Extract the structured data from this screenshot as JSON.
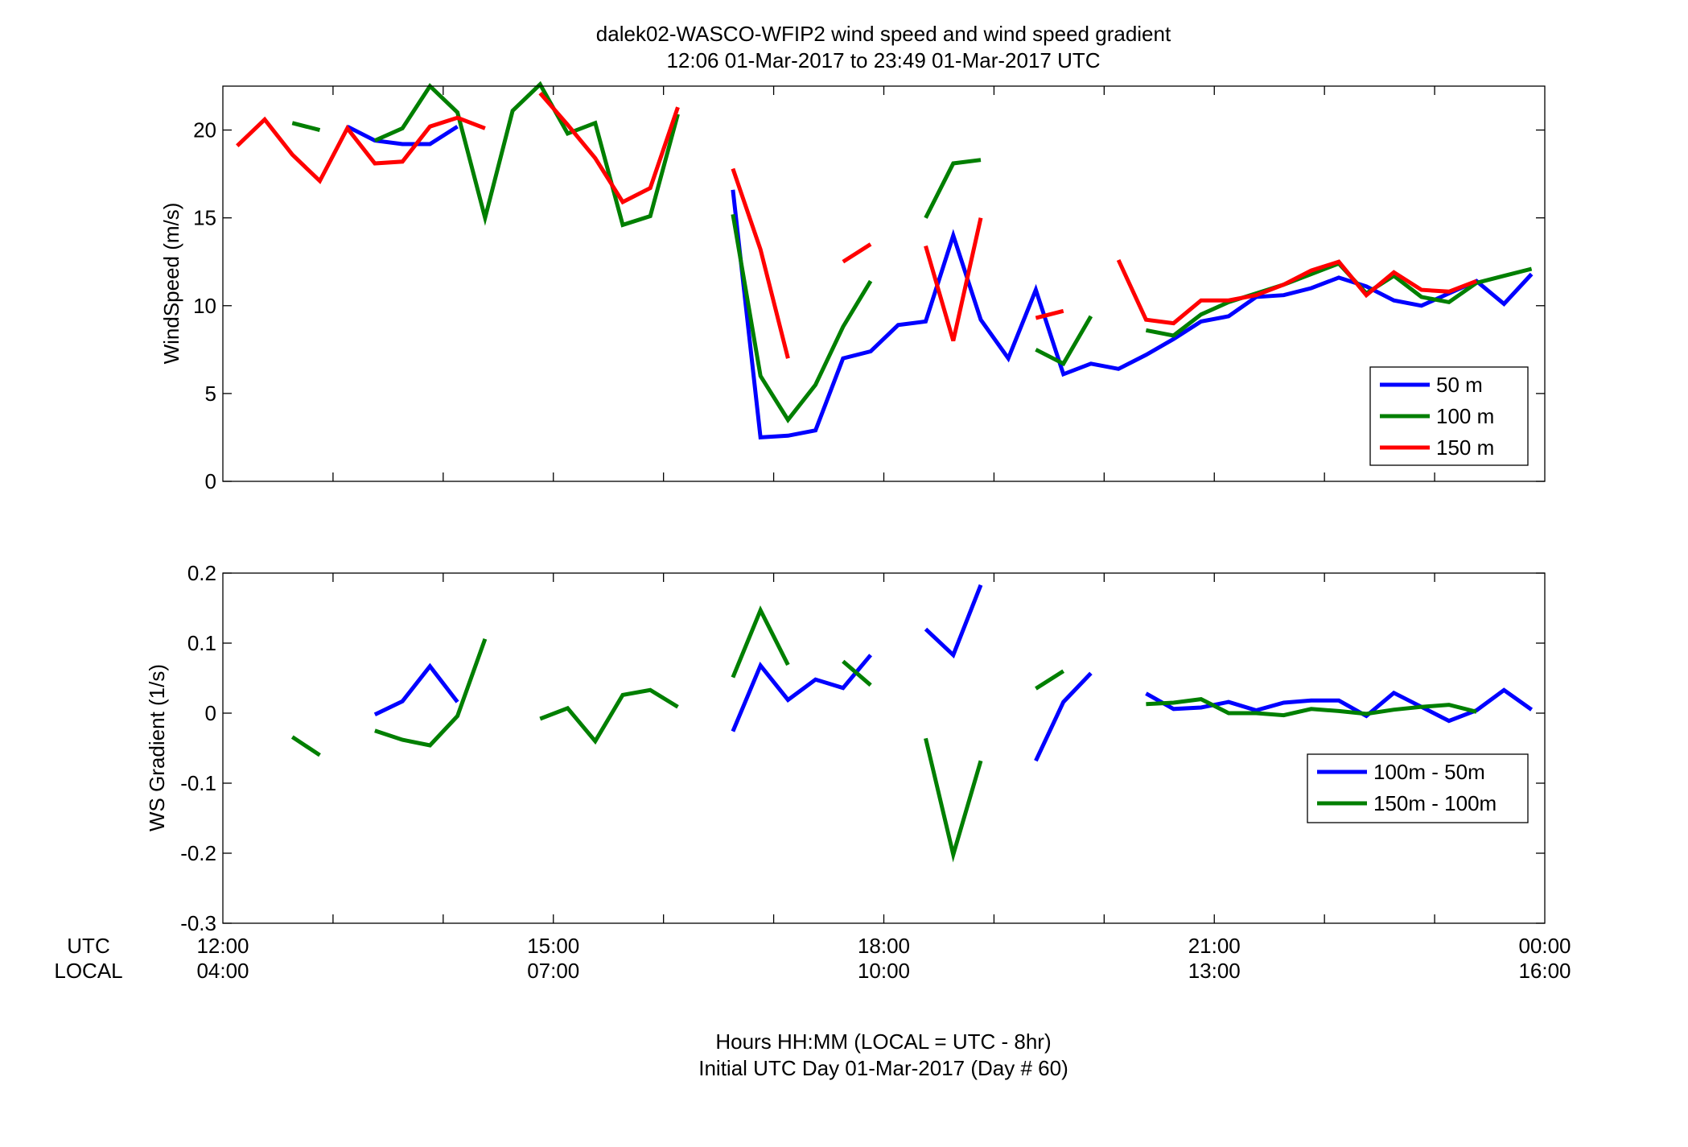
{
  "figure": {
    "title_line1": "dalek02-WASCO-WFIP2  wind speed and wind speed gradient",
    "title_line2": "12:06 01-Mar-2017 to 23:49 01-Mar-2017  UTC",
    "xlabel_line1": "Hours HH:MM  (LOCAL = UTC - 8hr)",
    "xlabel_line2": "Initial UTC Day 01-Mar-2017 (Day # 60)",
    "utc_label": "UTC",
    "local_label": "LOCAL",
    "utc_ticks": [
      "12:00",
      "15:00",
      "18:00",
      "21:00",
      "00:00"
    ],
    "local_ticks": [
      "04:00",
      "07:00",
      "10:00",
      "13:00",
      "16:00"
    ]
  },
  "chart_data": [
    {
      "type": "line",
      "ylabel": "WindSpeed (m/s)",
      "xlim": [
        12,
        24
      ],
      "ylim": [
        0,
        22.5
      ],
      "yticks": [
        0,
        5,
        10,
        15,
        20
      ],
      "legend_position": "bottom-right",
      "x": [
        12.13,
        12.38,
        12.63,
        12.88,
        13.13,
        13.38,
        13.63,
        13.88,
        14.13,
        14.38,
        14.63,
        14.88,
        15.13,
        15.38,
        15.63,
        15.88,
        16.13,
        16.38,
        16.63,
        16.88,
        17.13,
        17.38,
        17.63,
        17.88,
        18.13,
        18.38,
        18.63,
        18.88,
        19.13,
        19.38,
        19.63,
        19.88,
        20.13,
        20.38,
        20.63,
        20.88,
        21.13,
        21.38,
        21.63,
        21.88,
        22.13,
        22.38,
        22.63,
        22.88,
        23.13,
        23.38,
        23.63,
        23.88
      ],
      "series": [
        {
          "name": "50 m",
          "color": "#0000ff",
          "values": [
            null,
            null,
            null,
            null,
            20.2,
            19.4,
            19.2,
            19.2,
            20.2,
            null,
            null,
            null,
            null,
            null,
            null,
            null,
            null,
            null,
            16.6,
            2.5,
            2.6,
            2.9,
            7.0,
            7.4,
            8.9,
            9.1,
            14.0,
            9.2,
            7.0,
            10.9,
            6.1,
            6.7,
            6.4,
            7.2,
            8.1,
            9.1,
            9.4,
            10.5,
            10.6,
            11.0,
            11.6,
            11.1,
            10.3,
            10.0,
            10.7,
            11.4,
            10.1,
            11.8
          ]
        },
        {
          "name": "100 m",
          "color": "#007f00",
          "values": [
            null,
            null,
            20.4,
            20.0,
            null,
            19.4,
            20.1,
            22.5,
            21.0,
            15.0,
            21.1,
            22.6,
            19.8,
            20.4,
            14.6,
            15.1,
            20.9,
            null,
            15.2,
            6.0,
            3.5,
            5.5,
            8.8,
            11.4,
            null,
            15.0,
            18.1,
            18.3,
            null,
            7.5,
            6.7,
            9.4,
            null,
            8.6,
            8.3,
            9.5,
            10.2,
            10.7,
            11.2,
            11.8,
            12.4,
            10.7,
            11.7,
            10.5,
            10.2,
            11.3,
            11.7,
            12.1
          ]
        },
        {
          "name": "150 m",
          "color": "#ff0000",
          "values": [
            19.1,
            20.6,
            18.6,
            17.1,
            20.1,
            18.1,
            18.2,
            20.2,
            20.7,
            20.1,
            null,
            22.1,
            20.3,
            18.4,
            15.9,
            16.7,
            21.3,
            null,
            17.8,
            13.2,
            7.0,
            null,
            12.5,
            13.5,
            null,
            13.4,
            8.0,
            15.0,
            null,
            9.3,
            9.7,
            null,
            12.6,
            9.2,
            9.0,
            10.3,
            10.3,
            10.6,
            11.2,
            12.0,
            12.5,
            10.6,
            11.9,
            10.9,
            10.8,
            11.4,
            null,
            null
          ]
        }
      ]
    },
    {
      "type": "line",
      "ylabel": "WS Gradient (1/s)",
      "xlim": [
        12,
        24
      ],
      "ylim": [
        -0.3,
        0.2
      ],
      "yticks": [
        -0.3,
        -0.2,
        -0.1,
        0,
        0.1,
        0.2
      ],
      "legend_position": "bottom-right",
      "x": [
        12.13,
        12.38,
        12.63,
        12.88,
        13.13,
        13.38,
        13.63,
        13.88,
        14.13,
        14.38,
        14.63,
        14.88,
        15.13,
        15.38,
        15.63,
        15.88,
        16.13,
        16.38,
        16.63,
        16.88,
        17.13,
        17.38,
        17.63,
        17.88,
        18.13,
        18.38,
        18.63,
        18.88,
        19.13,
        19.38,
        19.63,
        19.88,
        20.13,
        20.38,
        20.63,
        20.88,
        21.13,
        21.38,
        21.63,
        21.88,
        22.13,
        22.38,
        22.63,
        22.88,
        23.13,
        23.38,
        23.63,
        23.88
      ],
      "series": [
        {
          "name": "100m - 50m",
          "color": "#0000ff",
          "values": [
            null,
            null,
            null,
            null,
            null,
            -0.002,
            0.017,
            0.067,
            0.016,
            null,
            null,
            null,
            null,
            null,
            null,
            null,
            null,
            null,
            -0.026,
            0.068,
            0.019,
            0.048,
            0.036,
            0.083,
            null,
            0.12,
            0.083,
            0.183,
            null,
            -0.068,
            0.016,
            0.057,
            null,
            0.028,
            0.006,
            0.008,
            0.016,
            0.004,
            0.015,
            0.018,
            0.018,
            -0.004,
            0.029,
            0.009,
            -0.011,
            0.004,
            0.033,
            0.005
          ]
        },
        {
          "name": "150m - 100m",
          "color": "#007f00",
          "values": [
            null,
            null,
            -0.034,
            -0.06,
            null,
            -0.025,
            -0.038,
            -0.046,
            -0.004,
            0.106,
            null,
            -0.008,
            0.007,
            -0.04,
            0.026,
            0.033,
            0.009,
            null,
            0.051,
            0.147,
            0.069,
            null,
            0.074,
            0.04,
            null,
            -0.036,
            -0.202,
            -0.068,
            null,
            0.035,
            0.06,
            null,
            null,
            0.013,
            0.015,
            0.02,
            0.0,
            0.0,
            -0.003,
            0.006,
            0.003,
            -0.001,
            0.005,
            0.009,
            0.012,
            0.002,
            null,
            null
          ]
        }
      ]
    }
  ]
}
